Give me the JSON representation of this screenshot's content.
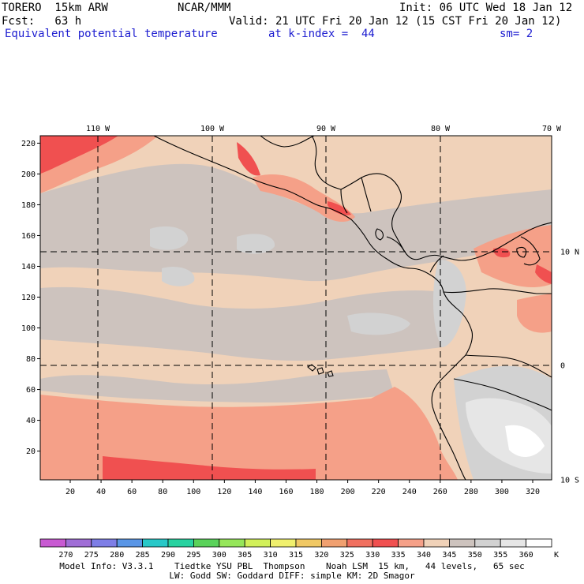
{
  "header": {
    "model": "TORERO  15km ARW",
    "center": "NCAR/MMM",
    "init": "Init: 06 UTC Wed 18 Jan 12",
    "fcst": "Fcst:   63 h",
    "valid": "Valid: 21 UTC Fri 20 Jan 12 (15 CST Fri 20 Jan 12)",
    "field": "Equivalent potential temperature",
    "level": "at k-index =  44",
    "smooth": "sm= 2"
  },
  "map": {
    "top_lon_labels": [
      "110 W",
      "100 W",
      "90 W",
      "80 W",
      "70 W"
    ],
    "left_ticks": [
      "220",
      "200",
      "180",
      "160",
      "140",
      "120",
      "100",
      "80",
      "60",
      "40",
      "20"
    ],
    "bottom_ticks": [
      "20",
      "40",
      "60",
      "80",
      "100",
      "120",
      "140",
      "160",
      "180",
      "200",
      "220",
      "240",
      "260",
      "280",
      "300",
      "320"
    ],
    "right_lat_labels": [
      "10 N",
      "0",
      "10 S"
    ]
  },
  "colorbar": {
    "labels": [
      "270",
      "275",
      "280",
      "285",
      "290",
      "295",
      "300",
      "305",
      "310",
      "315",
      "320",
      "325",
      "330",
      "335",
      "340",
      "345",
      "350",
      "355",
      "360"
    ],
    "unit": "K",
    "colors": [
      "#c85ad2",
      "#a06ed6",
      "#7e7ee6",
      "#5a96e6",
      "#28c8c8",
      "#28d2a0",
      "#5ad25a",
      "#96e65a",
      "#d2f05a",
      "#f0f06e",
      "#f0c864",
      "#f0a070",
      "#f07060",
      "#f05050",
      "#f5a088",
      "#f0d2b9",
      "#cdc3be",
      "#d2d2d2",
      "#e6e6e6",
      "#ffffff"
    ]
  },
  "model_info": {
    "line1": "Model Info: V3.3.1    Tiedtke YSU PBL  Thompson    Noah LSM  15 km,   44 levels,   65 sec",
    "line2": "LW: Godd SW: Goddard DIFF: simple KM: 2D Smagor"
  }
}
